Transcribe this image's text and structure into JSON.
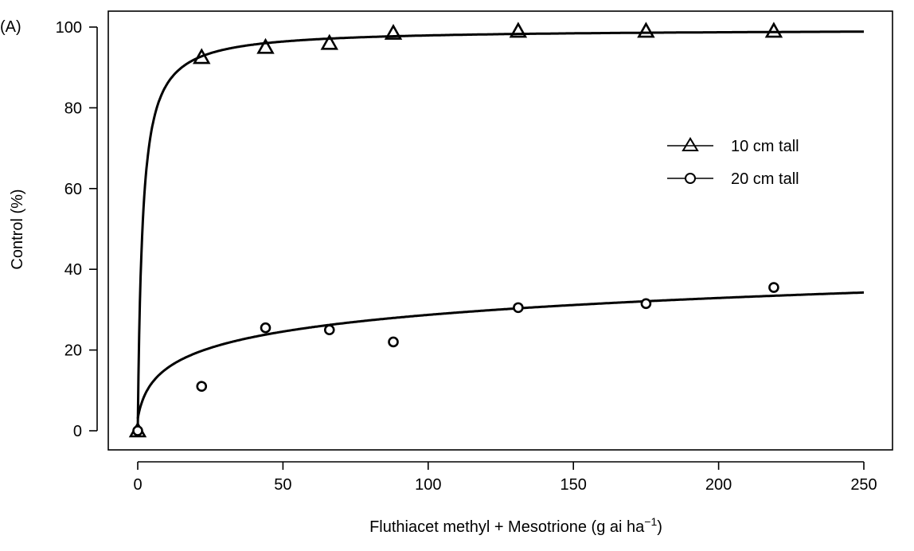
{
  "chart_data": {
    "type": "scatter",
    "panel_label": "(A)",
    "title": "",
    "xlabel_main": "Fluthiacet methyl + Mesotrione (g ai ha",
    "xlabel_sup": "−1",
    "xlabel_close": ")",
    "ylabel": "Control (%)",
    "xlim": [
      0,
      250
    ],
    "ylim": [
      0,
      100
    ],
    "xticks": [
      "0",
      "50",
      "100",
      "150",
      "200",
      "250"
    ],
    "yticks": [
      "0",
      "20",
      "40",
      "60",
      "80",
      "100"
    ],
    "grid": false,
    "legend_position": "right",
    "series": [
      {
        "name": "10 cm tall",
        "marker": "triangle",
        "x": [
          0,
          22,
          44,
          66,
          88,
          131,
          175,
          219
        ],
        "y": [
          0,
          92.5,
          95,
          96,
          98.5,
          99,
          99,
          99
        ],
        "fit": "steep-saturating"
      },
      {
        "name": "20 cm tall",
        "marker": "circle",
        "x": [
          0,
          22,
          44,
          66,
          88,
          131,
          175,
          219
        ],
        "y": [
          0,
          11,
          25.5,
          25,
          22,
          30.5,
          31.5,
          35.5
        ],
        "fit": "gradual-rising"
      }
    ]
  }
}
